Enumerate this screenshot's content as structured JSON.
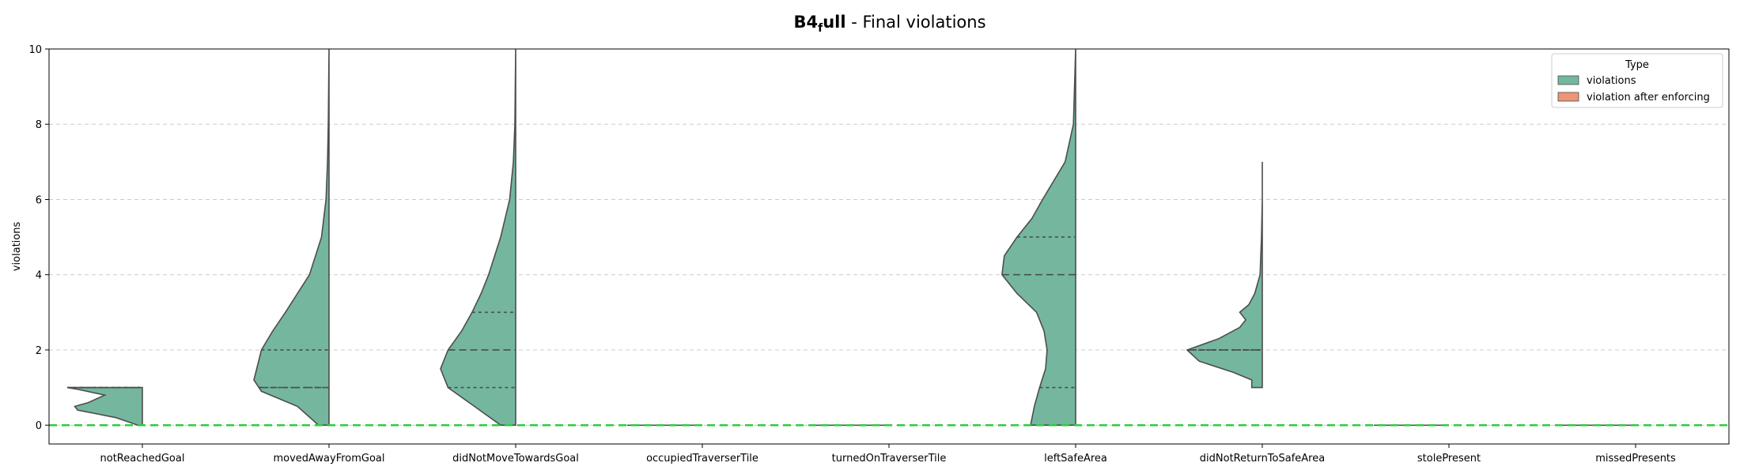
{
  "chart_data": {
    "type": "violin",
    "title": {
      "main": "B4",
      "subscript": "f",
      "main_suffix": "ull",
      "rest": " - Final violations"
    },
    "ylabel": "violations",
    "ylim": [
      -0.5,
      10
    ],
    "yticks": [
      0,
      2,
      4,
      6,
      8,
      10
    ],
    "grid": "y-dashed",
    "reference_line": {
      "y": 0,
      "color": "#2ecc40",
      "style": "dashed"
    },
    "legend": {
      "title": "Type",
      "position": "top-right",
      "entries": [
        {
          "label": "violations",
          "color": "#74b79e"
        },
        {
          "label": "violation after enforcing",
          "color": "#eb9674"
        }
      ]
    },
    "categories": [
      "notReachedGoal",
      "movedAwayFromGoal",
      "didNotMoveTowardsGoal",
      "occupiedTraverserTile",
      "turnedOnTraverserTile",
      "leftSafeArea",
      "didNotReturnToSafeArea",
      "stolePresent",
      "missedPresents"
    ],
    "series": [
      {
        "name": "violations",
        "color": "#74b79e",
        "edge_color": "#4d4d4d",
        "violins": [
          {
            "category": "notReachedGoal",
            "quartiles": [
              1,
              1,
              1
            ],
            "density": [
              [
                0,
                0.06
              ],
              [
                0.2,
                0.35
              ],
              [
                0.4,
                0.86
              ],
              [
                0.5,
                0.9
              ],
              [
                0.6,
                0.72
              ],
              [
                0.8,
                0.5
              ],
              [
                0.95,
                0.85
              ],
              [
                1,
                1
              ]
            ]
          },
          {
            "category": "movedAwayFromGoal",
            "quartiles": [
              1,
              1,
              2
            ],
            "density": [
              [
                0,
                0.14
              ],
              [
                0.5,
                0.42
              ],
              [
                0.9,
                0.9
              ],
              [
                1.2,
                1.0
              ],
              [
                1.6,
                0.95
              ],
              [
                2,
                0.9
              ],
              [
                2.5,
                0.75
              ],
              [
                3,
                0.58
              ],
              [
                3.5,
                0.42
              ],
              [
                4,
                0.26
              ],
              [
                5,
                0.1
              ],
              [
                6,
                0.04
              ],
              [
                7,
                0.02
              ],
              [
                8,
                0.01
              ],
              [
                10,
                0
              ]
            ]
          },
          {
            "category": "didNotMoveTowardsGoal",
            "quartiles": [
              1,
              2,
              3
            ],
            "density": [
              [
                0,
                0.2
              ],
              [
                0.5,
                0.55
              ],
              [
                1,
                0.9
              ],
              [
                1.5,
                1.0
              ],
              [
                2,
                0.9
              ],
              [
                2.5,
                0.72
              ],
              [
                3,
                0.58
              ],
              [
                3.5,
                0.46
              ],
              [
                4,
                0.36
              ],
              [
                5,
                0.2
              ],
              [
                6,
                0.08
              ],
              [
                7,
                0.03
              ],
              [
                8,
                0.01
              ],
              [
                10,
                0
              ]
            ]
          },
          {
            "category": "occupiedTraverserTile",
            "quartiles": [
              0,
              0,
              0
            ],
            "density": []
          },
          {
            "category": "turnedOnTraverserTile",
            "quartiles": [
              0,
              0,
              0
            ],
            "density": []
          },
          {
            "category": "leftSafeArea",
            "quartiles": [
              1,
              4,
              5
            ],
            "density": [
              [
                0,
                0.6
              ],
              [
                0.5,
                0.55
              ],
              [
                1,
                0.48
              ],
              [
                1.5,
                0.4
              ],
              [
                2,
                0.38
              ],
              [
                2.5,
                0.42
              ],
              [
                3,
                0.52
              ],
              [
                3.5,
                0.78
              ],
              [
                4,
                0.98
              ],
              [
                4.5,
                0.95
              ],
              [
                5,
                0.78
              ],
              [
                5.5,
                0.58
              ],
              [
                6,
                0.44
              ],
              [
                7,
                0.14
              ],
              [
                8,
                0.03
              ],
              [
                10,
                0
              ]
            ]
          },
          {
            "category": "didNotReturnToSafeArea",
            "quartiles": [
              2,
              2,
              2
            ],
            "density": [
              [
                1,
                0.14
              ],
              [
                1.2,
                0.14
              ],
              [
                1.4,
                0.38
              ],
              [
                1.7,
                0.84
              ],
              [
                2,
                1.0
              ],
              [
                2.3,
                0.58
              ],
              [
                2.6,
                0.3
              ],
              [
                2.8,
                0.22
              ],
              [
                3,
                0.3
              ],
              [
                3.2,
                0.18
              ],
              [
                3.5,
                0.1
              ],
              [
                4,
                0.03
              ],
              [
                4.5,
                0.02
              ],
              [
                5,
                0.01
              ],
              [
                6,
                0
              ],
              [
                7,
                0
              ]
            ]
          },
          {
            "category": "stolePresent",
            "quartiles": [
              0,
              0,
              0
            ],
            "density": []
          },
          {
            "category": "missedPresents",
            "quartiles": [
              0,
              0,
              0
            ],
            "density": []
          }
        ]
      },
      {
        "name": "violation after enforcing",
        "color": "#eb9674",
        "violins": []
      }
    ]
  }
}
